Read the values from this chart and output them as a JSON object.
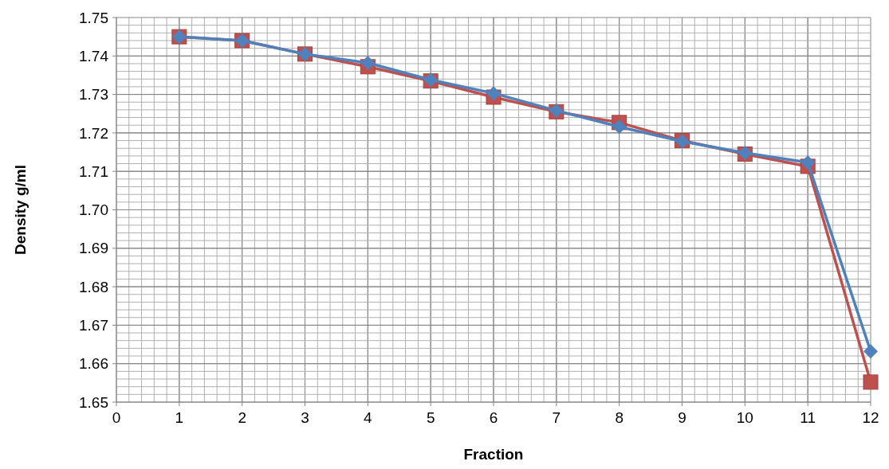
{
  "chart_data": {
    "type": "line",
    "xlabel": "Fraction",
    "ylabel": "Density g/ml",
    "x": [
      1,
      2,
      3,
      4,
      5,
      6,
      7,
      8,
      9,
      10,
      11,
      12
    ],
    "xlim": [
      0,
      12
    ],
    "xticks": [
      0,
      1,
      2,
      3,
      4,
      5,
      6,
      7,
      8,
      9,
      10,
      11,
      12
    ],
    "ylim": [
      1.65,
      1.75
    ],
    "yticks": [
      {
        "value": 1.65,
        "label": "1.65"
      },
      {
        "value": 1.66,
        "label": "1.66"
      },
      {
        "value": 1.67,
        "label": "1.67"
      },
      {
        "value": 1.68,
        "label": "1.68"
      },
      {
        "value": 1.69,
        "label": "1.69"
      },
      {
        "value": 1.7,
        "label": "1.70"
      },
      {
        "value": 1.71,
        "label": "1.71"
      },
      {
        "value": 1.72,
        "label": "1.72"
      },
      {
        "value": 1.73,
        "label": "1.73"
      },
      {
        "value": 1.74,
        "label": "1.74"
      },
      {
        "value": 1.75,
        "label": "1.75"
      }
    ],
    "grid": true,
    "line_style": "solid",
    "series": [
      {
        "color": "#c0504d",
        "marker": "square",
        "values": [
          1.745,
          1.744,
          1.7405,
          1.7372,
          1.7335,
          1.7293,
          1.7255,
          1.7227,
          1.718,
          1.7145,
          1.7113,
          1.6552
        ]
      },
      {
        "color": "#4f81bd",
        "marker": "diamond",
        "values": [
          1.745,
          1.744,
          1.7405,
          1.7382,
          1.7338,
          1.7303,
          1.7258,
          1.7216,
          1.7178,
          1.7148,
          1.7123,
          1.6632
        ]
      }
    ]
  }
}
